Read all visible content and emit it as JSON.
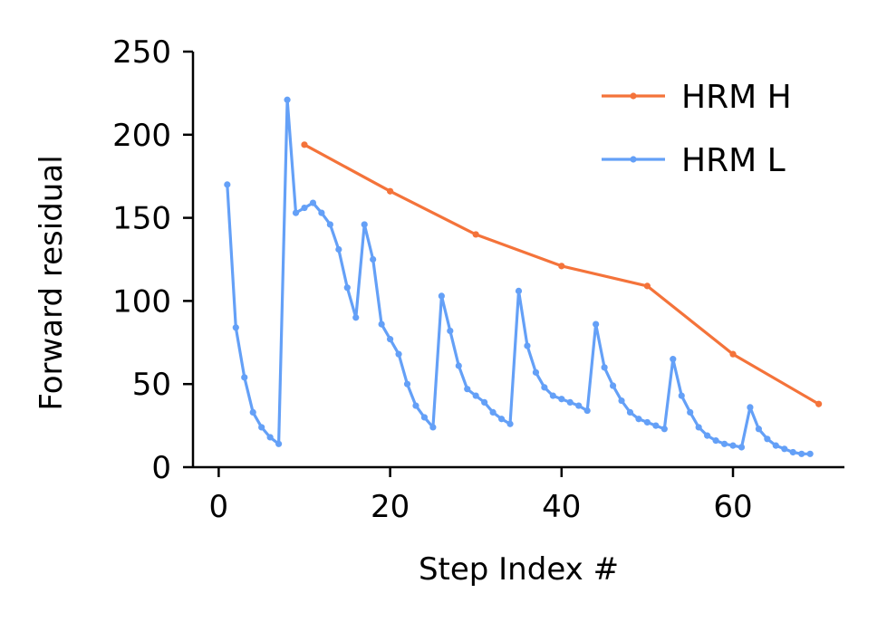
{
  "chart_data": {
    "type": "line",
    "xlabel": "Step Index #",
    "ylabel": "Forward residual",
    "xlim": [
      -3,
      73
    ],
    "ylim": [
      0,
      250
    ],
    "xticks": [
      0,
      20,
      40,
      60
    ],
    "yticks": [
      0,
      50,
      100,
      150,
      200,
      250
    ],
    "grid": false,
    "legend_position": "top-right",
    "series": [
      {
        "name": "HRM H",
        "color": "#f4733a",
        "x": [
          10,
          20,
          30,
          40,
          50,
          60,
          70
        ],
        "y": [
          194,
          166,
          140,
          121,
          109,
          68,
          38
        ]
      },
      {
        "name": "HRM L",
        "color": "#64a0f7",
        "x": [
          1,
          2,
          3,
          4,
          5,
          6,
          7,
          8,
          9,
          10,
          11,
          12,
          13,
          14,
          15,
          16,
          17,
          18,
          19,
          20,
          21,
          22,
          23,
          24,
          25,
          26,
          27,
          28,
          29,
          30,
          31,
          32,
          33,
          34,
          35,
          36,
          37,
          38,
          39,
          40,
          41,
          42,
          43,
          44,
          45,
          46,
          47,
          48,
          49,
          50,
          51,
          52,
          53,
          54,
          55,
          56,
          57,
          58,
          59,
          60,
          61,
          62,
          63,
          64,
          65,
          66,
          67,
          68,
          69
        ],
        "y": [
          170,
          84,
          54,
          33,
          24,
          18,
          14,
          221,
          153,
          156,
          159,
          153,
          146,
          131,
          108,
          90,
          146,
          125,
          86,
          77,
          68,
          50,
          37,
          30,
          24,
          103,
          82,
          61,
          47,
          43,
          39,
          33,
          29,
          26,
          106,
          73,
          57,
          48,
          43,
          41,
          39,
          37,
          34,
          86,
          60,
          49,
          40,
          33,
          29,
          27,
          25,
          23,
          65,
          43,
          33,
          24,
          19,
          16,
          14,
          13,
          12,
          36,
          23,
          17,
          13,
          11,
          9,
          8,
          8
        ]
      }
    ]
  }
}
